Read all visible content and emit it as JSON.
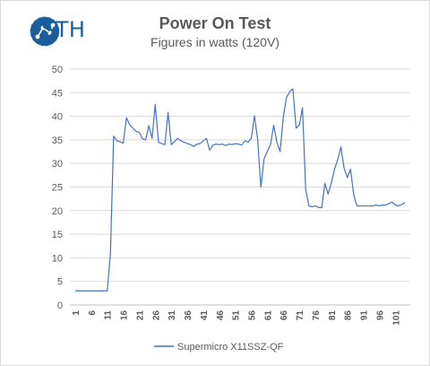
{
  "brand": {
    "logo_text": "STH",
    "accent_color": "#1a5d9c"
  },
  "chart_data": {
    "type": "line",
    "title": "Power On Test",
    "subtitle": "Figures in watts (120V)",
    "xlabel": "",
    "ylabel": "",
    "ylim": [
      0,
      50
    ],
    "yticks": [
      0,
      5,
      10,
      15,
      20,
      25,
      30,
      35,
      40,
      45,
      50
    ],
    "xticks": [
      1,
      6,
      11,
      16,
      21,
      26,
      31,
      36,
      41,
      46,
      51,
      56,
      61,
      66,
      71,
      76,
      81,
      86,
      91,
      96,
      101
    ],
    "grid": "horizontal",
    "legend": "bottom",
    "series": [
      {
        "name": "Supermicro X11SSZ-QF",
        "color": "#4472c4",
        "x": [
          1,
          2,
          3,
          4,
          5,
          6,
          7,
          8,
          9,
          10,
          11,
          12,
          13,
          14,
          15,
          16,
          17,
          18,
          19,
          20,
          21,
          22,
          23,
          24,
          25,
          26,
          27,
          28,
          29,
          30,
          31,
          32,
          33,
          34,
          35,
          36,
          37,
          38,
          39,
          40,
          41,
          42,
          43,
          44,
          45,
          46,
          47,
          48,
          49,
          50,
          51,
          52,
          53,
          54,
          55,
          56,
          57,
          58,
          59,
          60,
          61,
          62,
          63,
          64,
          65,
          66,
          67,
          68,
          69,
          70,
          71,
          72,
          73,
          74,
          75,
          76,
          77,
          78,
          79,
          80,
          81,
          82,
          83,
          84,
          85,
          86,
          87,
          88,
          89,
          90,
          91,
          92,
          93,
          94,
          95,
          96,
          97,
          98,
          99,
          100,
          101,
          102,
          103,
          104
        ],
        "values": [
          3,
          3,
          3,
          3,
          3,
          3,
          3,
          3,
          3,
          3,
          3,
          11,
          35.8,
          34.8,
          34.6,
          34.3,
          39.7,
          38.2,
          37.5,
          36.8,
          36.6,
          35.2,
          35,
          38,
          35.3,
          42.5,
          34.5,
          34.2,
          34,
          40.8,
          34,
          34.6,
          35.3,
          34.8,
          34.5,
          34.2,
          34,
          33.6,
          34.1,
          34.2,
          34.8,
          35.3,
          32.8,
          33.9,
          34.1,
          34,
          34.1,
          33.8,
          34.1,
          34,
          34.2,
          34.1,
          33.9,
          34.8,
          34.5,
          35.3,
          40.1,
          35,
          25,
          31,
          32.5,
          34,
          38.1,
          34.5,
          32.5,
          39.8,
          44,
          45.2,
          45.8,
          37.5,
          38.1,
          41.8,
          24.5,
          21,
          20.8,
          21,
          20.7,
          20.6,
          25.8,
          23.5,
          25.8,
          28.8,
          30.8,
          33.5,
          29,
          27,
          28.8,
          23.4,
          21,
          21,
          21,
          21,
          21,
          21,
          21.2,
          21,
          21.2,
          21.2,
          21.5,
          21.8,
          21.2,
          21,
          21.3,
          21.7
        ]
      }
    ]
  }
}
